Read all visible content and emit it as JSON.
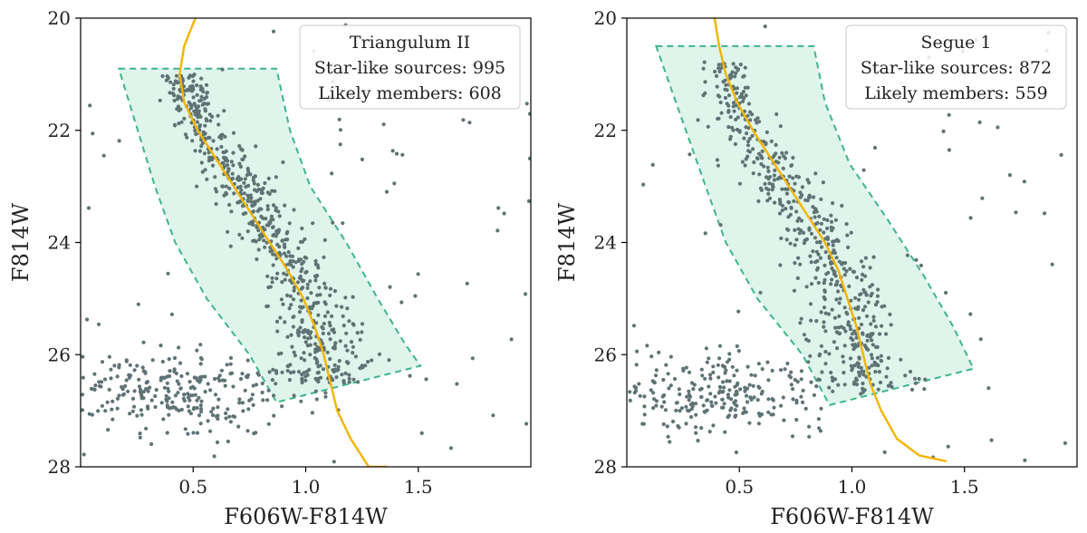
{
  "colors": {
    "points": "#5f7375",
    "isochrone": "#f4b400",
    "selection_stroke": "#3cb58a",
    "selection_fill": "#d9f2e7",
    "axes": "#000000"
  },
  "chart_data": [
    {
      "type": "scatter",
      "name": "triangulum-ii",
      "title": "Triangulum II",
      "xlabel": "F606W-F814W",
      "ylabel": "F814W",
      "xlim": [
        0.0,
        2.0
      ],
      "ylim": [
        28,
        20
      ],
      "xticks": [
        "0.5",
        "1.0",
        "1.5"
      ],
      "xtick_values": [
        0.5,
        1.0,
        1.5
      ],
      "yticks": [
        "20",
        "22",
        "24",
        "26",
        "28"
      ],
      "ytick_values": [
        20,
        22,
        24,
        26,
        28
      ],
      "legend": {
        "position": "top-right",
        "lines": [
          "Triangulum II",
          "Star-like sources: 995",
          "Likely members: 608"
        ]
      },
      "isochrone": {
        "x": [
          0.51,
          0.46,
          0.44,
          0.46,
          0.52,
          0.6,
          0.68,
          0.76,
          0.84,
          0.92,
          0.99,
          1.04,
          1.08,
          1.11,
          1.14,
          1.2,
          1.28,
          1.36
        ],
        "y": [
          20.0,
          20.5,
          21.0,
          21.5,
          22.0,
          22.5,
          23.0,
          23.5,
          24.0,
          24.5,
          25.0,
          25.5,
          26.0,
          26.5,
          27.0,
          27.5,
          28.0,
          28.0
        ]
      },
      "selection_box": {
        "x": [
          0.17,
          0.87,
          0.93,
          1.02,
          1.18,
          1.32,
          1.44,
          1.51,
          0.87,
          0.75,
          0.56,
          0.42,
          0.33,
          0.17
        ],
        "y": [
          20.9,
          20.9,
          22.0,
          23.0,
          24.0,
          25.0,
          25.8,
          26.2,
          26.85,
          26.0,
          25.0,
          24.0,
          23.0,
          20.9
        ]
      },
      "scatter": {
        "n_points": 995,
        "seed": 11,
        "sequence": [
          [
            0.45,
            21.0
          ],
          [
            0.5,
            21.5
          ],
          [
            0.56,
            22.0
          ],
          [
            0.64,
            22.5
          ],
          [
            0.72,
            23.0
          ],
          [
            0.8,
            23.5
          ],
          [
            0.88,
            24.0
          ],
          [
            0.95,
            24.5
          ],
          [
            1.0,
            25.0
          ],
          [
            1.05,
            25.5
          ],
          [
            1.08,
            26.0
          ],
          [
            1.1,
            26.5
          ]
        ],
        "sequence_fraction": 0.63,
        "field_fraction": 0.28,
        "field_center": [
          0.45,
          26.7
        ],
        "field_spread": [
          0.28,
          0.4
        ],
        "sequence_spread": 0.07
      }
    },
    {
      "type": "scatter",
      "name": "segue-1",
      "title": "Segue 1",
      "xlabel": "F606W-F814W",
      "ylabel": "F814W",
      "xlim": [
        0.0,
        2.0
      ],
      "ylim": [
        28,
        20
      ],
      "xticks": [
        "0.5",
        "1.0",
        "1.5"
      ],
      "xtick_values": [
        0.5,
        1.0,
        1.5
      ],
      "yticks": [
        "20",
        "22",
        "24",
        "26",
        "28"
      ],
      "ytick_values": [
        20,
        22,
        24,
        26,
        28
      ],
      "legend": {
        "position": "top-right",
        "lines": [
          "Segue 1",
          "Star-like sources: 872",
          "Likely members: 559"
        ]
      },
      "isochrone": {
        "x": [
          0.39,
          0.41,
          0.44,
          0.49,
          0.56,
          0.64,
          0.72,
          0.8,
          0.88,
          0.94,
          0.98,
          1.02,
          1.05,
          1.08,
          1.13,
          1.2,
          1.3,
          1.42
        ],
        "y": [
          20.0,
          20.5,
          21.0,
          21.5,
          22.0,
          22.5,
          23.0,
          23.5,
          24.0,
          24.5,
          25.0,
          25.5,
          26.0,
          26.5,
          27.0,
          27.5,
          27.8,
          27.9
        ]
      },
      "selection_box": {
        "x": [
          0.13,
          0.83,
          0.88,
          0.99,
          1.16,
          1.32,
          1.45,
          1.54,
          0.9,
          0.78,
          0.58,
          0.44,
          0.35,
          0.13
        ],
        "y": [
          20.5,
          20.5,
          21.5,
          22.6,
          23.6,
          24.6,
          25.5,
          26.25,
          26.9,
          26.0,
          25.0,
          24.0,
          23.0,
          20.5
        ]
      },
      "scatter": {
        "n_points": 872,
        "seed": 29,
        "sequence": [
          [
            0.43,
            20.8
          ],
          [
            0.48,
            21.5
          ],
          [
            0.56,
            22.2
          ],
          [
            0.66,
            22.8
          ],
          [
            0.76,
            23.3
          ],
          [
            0.84,
            23.8
          ],
          [
            0.9,
            24.3
          ],
          [
            0.95,
            24.8
          ],
          [
            0.99,
            25.3
          ],
          [
            1.02,
            25.8
          ],
          [
            1.05,
            26.3
          ],
          [
            1.08,
            26.7
          ]
        ],
        "sequence_fraction": 0.62,
        "field_fraction": 0.3,
        "field_center": [
          0.38,
          26.7
        ],
        "field_spread": [
          0.26,
          0.35
        ],
        "sequence_spread": 0.08
      }
    }
  ]
}
